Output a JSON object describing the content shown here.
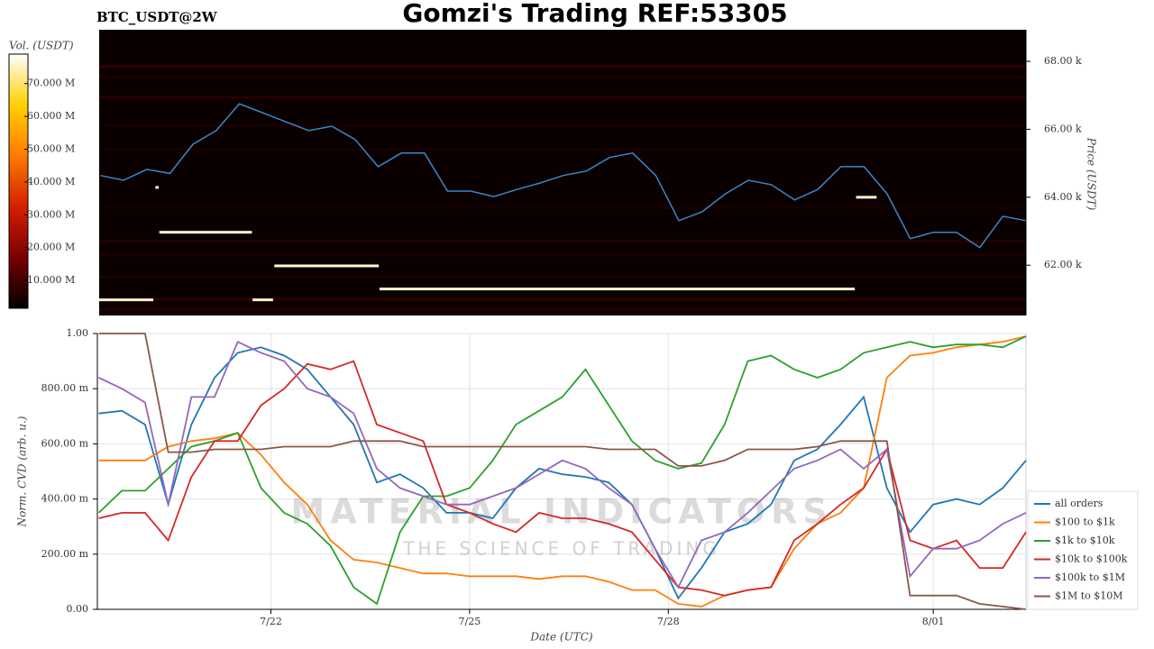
{
  "title": "Gomzi's Trading REF:53305",
  "chart_data": [
    {
      "type": "heatmap",
      "title": "BTC_USDT@2W",
      "y_label": "Price (USDT)",
      "colorbar_label": "Vol. (USDT)",
      "x": [
        19.4,
        19.75,
        20.1,
        20.45,
        20.8,
        21.15,
        21.5,
        21.85,
        22.2,
        22.55,
        22.9,
        23.25,
        23.6,
        23.95,
        24.3,
        24.65,
        25.0,
        25.35,
        25.7,
        26.05,
        26.4,
        26.75,
        27.1,
        27.45,
        27.8,
        28.15,
        28.5,
        28.85,
        29.2,
        29.55,
        29.9,
        30.25,
        30.6,
        30.95,
        31.3,
        31.65,
        32.0,
        32.35,
        32.7,
        33.05,
        33.4
      ],
      "price": [
        64640,
        64500,
        64820,
        64700,
        65560,
        65960,
        66750,
        66490,
        66220,
        65960,
        66090,
        65700,
        64900,
        65300,
        65300,
        64180,
        64180,
        64020,
        64230,
        64420,
        64640,
        64770,
        65170,
        65300,
        64640,
        63310,
        63570,
        64100,
        64500,
        64370,
        63920,
        64230,
        64900,
        64900,
        64100,
        62780,
        62970,
        62970,
        62520,
        63440,
        63310
      ],
      "price_color": "#3a86c8",
      "orders": [
        {
          "start": 19.38,
          "end": 20.2,
          "price": 60980,
          "volume": 76000000
        },
        {
          "start": 20.23,
          "end": 20.28,
          "price": 64290,
          "volume": 76000000
        },
        {
          "start": 20.29,
          "end": 21.69,
          "price": 62970,
          "volume": 76000000
        },
        {
          "start": 21.7,
          "end": 22.01,
          "price": 60980,
          "volume": 76000000
        },
        {
          "start": 22.03,
          "end": 23.61,
          "price": 61980,
          "volume": 76000000
        },
        {
          "start": 23.62,
          "end": 30.81,
          "price": 61300,
          "volume": 76000000
        },
        {
          "start": 30.83,
          "end": 31.14,
          "price": 64000,
          "volume": 76000000
        }
      ],
      "levels": [
        {
          "price": 67850,
          "volume": 9000000
        },
        {
          "price": 67550,
          "volume": 6000000
        },
        {
          "price": 66940,
          "volume": 8000000
        },
        {
          "price": 66100,
          "volume": 5000000
        },
        {
          "price": 65400,
          "volume": 5000000
        },
        {
          "price": 63700,
          "volume": 5000000
        },
        {
          "price": 62700,
          "volume": 7000000
        },
        {
          "price": 62300,
          "volume": 6000000
        },
        {
          "price": 61650,
          "volume": 6000000
        },
        {
          "price": 61000,
          "volume": 9000000
        },
        {
          "price": 60700,
          "volume": 7000000
        }
      ],
      "xlim": [
        19.38,
        33.4
      ],
      "ylim": [
        60520,
        68930
      ],
      "yticks": [
        {
          "value": 62000,
          "label": "62.00 k"
        },
        {
          "value": 64000,
          "label": "64.00 k"
        },
        {
          "value": 66000,
          "label": "66.00 k"
        },
        {
          "value": 68000,
          "label": "68.00 k"
        }
      ],
      "clim": [
        1500000,
        79000000
      ],
      "cticks": [
        {
          "value": 10000000,
          "label": "10.000 M"
        },
        {
          "value": 20000000,
          "label": "20.000 M"
        },
        {
          "value": 30000000,
          "label": "30.000 M"
        },
        {
          "value": 40000000,
          "label": "40.000 M"
        },
        {
          "value": 50000000,
          "label": "50.000 M"
        },
        {
          "value": 60000000,
          "label": "60.000 M"
        },
        {
          "value": 70000000,
          "label": "70.000 M"
        }
      ],
      "colormap": [
        "#000000",
        "#7a0000",
        "#d42000",
        "#ff7a00",
        "#ffd000",
        "#ffffff"
      ]
    },
    {
      "type": "line",
      "x_label": "Date (UTC)",
      "y_label": "Norm. CVD (arb. u.)",
      "watermark": [
        "MATERIAL INDICATORS",
        "THE SCIENCE OF TRADING"
      ],
      "x": [
        19.4,
        19.75,
        20.1,
        20.45,
        20.8,
        21.15,
        21.5,
        21.85,
        22.2,
        22.55,
        22.9,
        23.25,
        23.6,
        23.95,
        24.3,
        24.65,
        25.0,
        25.35,
        25.7,
        26.05,
        26.4,
        26.75,
        27.1,
        27.45,
        27.8,
        28.15,
        28.5,
        28.85,
        29.2,
        29.55,
        29.9,
        30.25,
        30.6,
        30.95,
        31.3,
        31.65,
        32.0,
        32.35,
        32.7,
        33.05,
        33.4
      ],
      "series": [
        {
          "name": "all orders",
          "color": "#1f77b4",
          "values": [
            0.71,
            0.72,
            0.67,
            0.38,
            0.67,
            0.84,
            0.93,
            0.95,
            0.92,
            0.87,
            0.77,
            0.67,
            0.46,
            0.49,
            0.44,
            0.35,
            0.35,
            0.33,
            0.44,
            0.51,
            0.49,
            0.48,
            0.46,
            0.38,
            0.22,
            0.04,
            0.15,
            0.28,
            0.31,
            0.38,
            0.54,
            0.58,
            0.67,
            0.77,
            0.44,
            0.28,
            0.38,
            0.4,
            0.38,
            0.44,
            0.54
          ]
        },
        {
          "name": "$100 to $1k",
          "color": "#ff7f0e",
          "values": [
            0.54,
            0.54,
            0.54,
            0.59,
            0.61,
            0.62,
            0.64,
            0.56,
            0.46,
            0.38,
            0.25,
            0.18,
            0.17,
            0.15,
            0.13,
            0.13,
            0.12,
            0.12,
            0.12,
            0.11,
            0.12,
            0.12,
            0.1,
            0.07,
            0.07,
            0.02,
            0.01,
            0.05,
            0.07,
            0.08,
            0.22,
            0.31,
            0.35,
            0.44,
            0.84,
            0.92,
            0.93,
            0.95,
            0.96,
            0.97,
            0.99
          ]
        },
        {
          "name": "$1k to $10k",
          "color": "#2ca02c",
          "values": [
            0.35,
            0.43,
            0.43,
            0.51,
            0.59,
            0.61,
            0.64,
            0.44,
            0.35,
            0.31,
            0.23,
            0.08,
            0.02,
            0.28,
            0.41,
            0.41,
            0.44,
            0.54,
            0.67,
            0.72,
            0.77,
            0.87,
            0.74,
            0.61,
            0.54,
            0.51,
            0.53,
            0.67,
            0.9,
            0.92,
            0.87,
            0.84,
            0.87,
            0.93,
            0.95,
            0.97,
            0.95,
            0.96,
            0.96,
            0.95,
            0.99
          ]
        },
        {
          "name": "$10k to $100k",
          "color": "#d62728",
          "values": [
            0.33,
            0.35,
            0.35,
            0.25,
            0.48,
            0.61,
            0.61,
            0.74,
            0.8,
            0.89,
            0.87,
            0.9,
            0.67,
            0.64,
            0.61,
            0.38,
            0.35,
            0.31,
            0.28,
            0.35,
            0.33,
            0.33,
            0.31,
            0.28,
            0.18,
            0.08,
            0.07,
            0.05,
            0.07,
            0.08,
            0.25,
            0.31,
            0.38,
            0.44,
            0.58,
            0.25,
            0.22,
            0.25,
            0.15,
            0.15,
            0.28
          ]
        },
        {
          "name": "$100k to $1M",
          "color": "#9467bd",
          "values": [
            0.84,
            0.8,
            0.75,
            0.38,
            0.77,
            0.77,
            0.97,
            0.93,
            0.9,
            0.8,
            0.77,
            0.71,
            0.51,
            0.44,
            0.41,
            0.38,
            0.38,
            0.41,
            0.44,
            0.49,
            0.54,
            0.51,
            0.44,
            0.38,
            0.22,
            0.08,
            0.25,
            0.28,
            0.35,
            0.43,
            0.51,
            0.54,
            0.58,
            0.51,
            0.58,
            0.12,
            0.22,
            0.22,
            0.25,
            0.31,
            0.35
          ]
        },
        {
          "name": "$1M to $10M",
          "color": "#8c564b",
          "values": [
            1.0,
            1.0,
            1.0,
            0.57,
            0.57,
            0.58,
            0.58,
            0.58,
            0.59,
            0.59,
            0.59,
            0.61,
            0.61,
            0.61,
            0.59,
            0.59,
            0.59,
            0.59,
            0.59,
            0.59,
            0.59,
            0.59,
            0.58,
            0.58,
            0.58,
            0.52,
            0.52,
            0.54,
            0.58,
            0.58,
            0.58,
            0.59,
            0.61,
            0.61,
            0.61,
            0.05,
            0.05,
            0.05,
            0.02,
            0.01,
            0.0
          ]
        }
      ],
      "xlim": [
        19.38,
        33.4
      ],
      "ylim": [
        0,
        1
      ],
      "xticks": [
        {
          "value": 22,
          "label": "7/22"
        },
        {
          "value": 25,
          "label": "7/25"
        },
        {
          "value": 28,
          "label": "7/28"
        },
        {
          "value": 32,
          "label": "8/01"
        }
      ],
      "yticks": [
        {
          "value": 0,
          "label": "0.00"
        },
        {
          "value": 0.2,
          "label": "200.00 m"
        },
        {
          "value": 0.4,
          "label": "400.00 m"
        },
        {
          "value": 0.6,
          "label": "600.00 m"
        },
        {
          "value": 0.8,
          "label": "800.00 m"
        },
        {
          "value": 1,
          "label": "1.00"
        }
      ],
      "grid": true,
      "legend": "lower-right"
    }
  ]
}
